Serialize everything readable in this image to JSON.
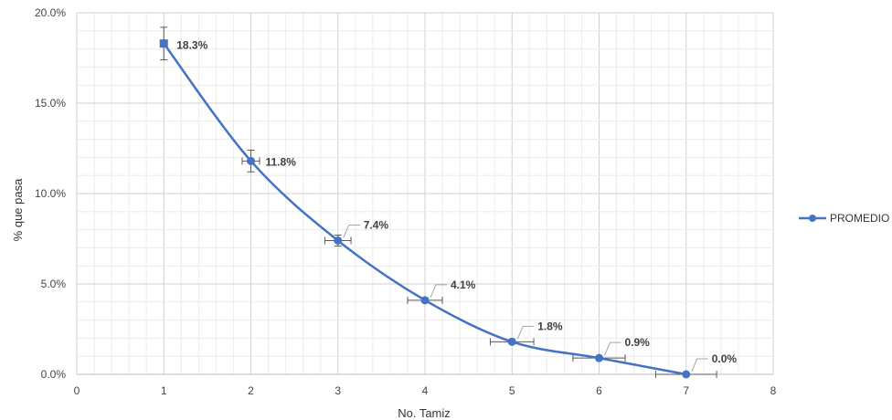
{
  "chart_data": {
    "type": "line",
    "xlabel": "No. Tamiz",
    "ylabel": "% que pasa",
    "xlim": [
      0,
      8
    ],
    "ylim": [
      0,
      0.2
    ],
    "x_ticks": [
      "0",
      "1",
      "2",
      "3",
      "4",
      "5",
      "6",
      "7",
      "8"
    ],
    "y_ticks": [
      "0.0%",
      "5.0%",
      "10.0%",
      "15.0%",
      "20.0%"
    ],
    "grid": true,
    "legend_position": "right",
    "series": [
      {
        "name": "PROMEDIO",
        "color": "#4472C4",
        "x": [
          1,
          2,
          3,
          4,
          5,
          6,
          7
        ],
        "y": [
          0.183,
          0.118,
          0.074,
          0.041,
          0.018,
          0.009,
          0.0
        ],
        "data_labels": [
          "18.3%",
          "11.8%",
          "7.4%",
          "4.1%",
          "1.8%",
          "0.9%",
          "0.0%"
        ],
        "y_error": [
          0.009,
          0.006,
          0.003,
          0.001,
          0.001,
          0.0005,
          0.0
        ],
        "x_error": [
          0.0,
          0.1,
          0.15,
          0.2,
          0.25,
          0.3,
          0.35
        ]
      }
    ]
  }
}
